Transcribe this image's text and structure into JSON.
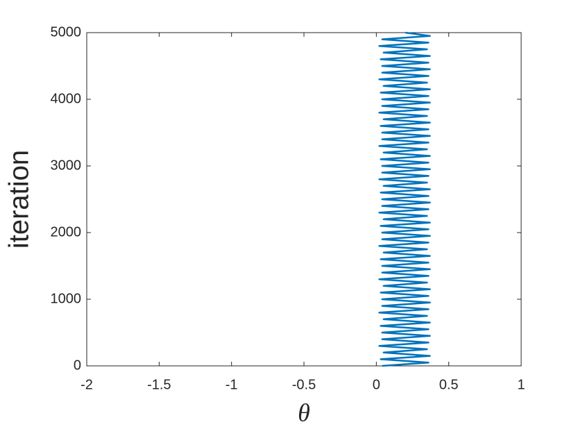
{
  "chart_data": {
    "type": "line",
    "xlabel": "θ",
    "ylabel": "iteration",
    "x": [
      0.04,
      0.36,
      0.03,
      0.37,
      0.05,
      0.35,
      0.02,
      0.36,
      0.04,
      0.37,
      0.04,
      0.36,
      0.03,
      0.37,
      0.05,
      0.35,
      0.02,
      0.36,
      0.04,
      0.37,
      0.04,
      0.36,
      0.03,
      0.37,
      0.05,
      0.35,
      0.02,
      0.36,
      0.04,
      0.37,
      0.04,
      0.36,
      0.03,
      0.37,
      0.05,
      0.35,
      0.02,
      0.36,
      0.04,
      0.37,
      0.04,
      0.36,
      0.03,
      0.37,
      0.05,
      0.35,
      0.02,
      0.36,
      0.04,
      0.37,
      0.04,
      0.36,
      0.03,
      0.37,
      0.05,
      0.35,
      0.02,
      0.36,
      0.04,
      0.37,
      0.04,
      0.36,
      0.03,
      0.37,
      0.05,
      0.35,
      0.02,
      0.36,
      0.04,
      0.37,
      0.04,
      0.36,
      0.03,
      0.37,
      0.05,
      0.35,
      0.02,
      0.36,
      0.04,
      0.37,
      0.04,
      0.36,
      0.03,
      0.37,
      0.05,
      0.35,
      0.02,
      0.36,
      0.04,
      0.37,
      0.04,
      0.36,
      0.03,
      0.37,
      0.05,
      0.35,
      0.02,
      0.36,
      0.04,
      0.37,
      0.2
    ],
    "values": [
      0,
      50,
      100,
      150,
      200,
      250,
      300,
      350,
      400,
      450,
      500,
      550,
      600,
      650,
      700,
      750,
      800,
      850,
      900,
      950,
      1000,
      1050,
      1100,
      1150,
      1200,
      1250,
      1300,
      1350,
      1400,
      1450,
      1500,
      1550,
      1600,
      1650,
      1700,
      1750,
      1800,
      1850,
      1900,
      1950,
      2000,
      2050,
      2100,
      2150,
      2200,
      2250,
      2300,
      2350,
      2400,
      2450,
      2500,
      2550,
      2600,
      2650,
      2700,
      2750,
      2800,
      2850,
      2900,
      2950,
      3000,
      3050,
      3100,
      3150,
      3200,
      3250,
      3300,
      3350,
      3400,
      3450,
      3500,
      3550,
      3600,
      3650,
      3700,
      3750,
      3800,
      3850,
      3900,
      3950,
      4000,
      4050,
      4100,
      4150,
      4200,
      4250,
      4300,
      4350,
      4400,
      4450,
      4500,
      4550,
      4600,
      4650,
      4700,
      4750,
      4800,
      4850,
      4900,
      4950,
      5000
    ],
    "color": "#0072bd",
    "xlim": [
      -2,
      1
    ],
    "xticks": [
      -2,
      -1.5,
      -1,
      -0.5,
      0,
      0.5,
      1
    ],
    "ylim": [
      0,
      5000
    ],
    "yticks": [
      0,
      1000,
      2000,
      3000,
      4000,
      5000
    ]
  }
}
